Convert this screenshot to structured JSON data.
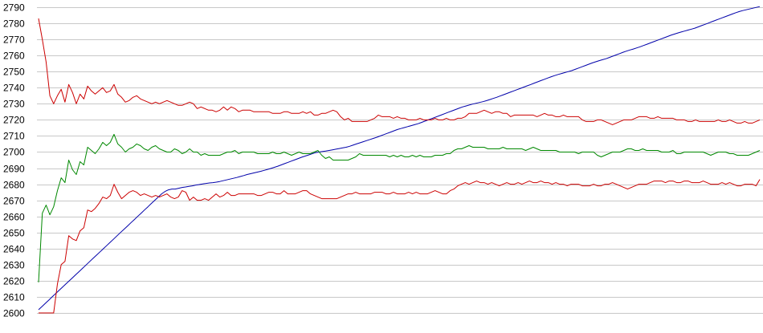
{
  "chart_data": {
    "type": "line",
    "title": "",
    "xlabel": "",
    "ylabel": "",
    "ylim": [
      2600,
      2790
    ],
    "yticks": [
      2600,
      2610,
      2620,
      2630,
      2640,
      2650,
      2660,
      2670,
      2680,
      2690,
      2700,
      2710,
      2720,
      2730,
      2740,
      2750,
      2760,
      2770,
      2780,
      2790
    ],
    "x_tick_labels": "none",
    "grid": "horizontal",
    "legend": "none",
    "series": [
      {
        "color": "#0000aa",
        "values": [
          2602,
          2604,
          2606,
          2608,
          2610,
          2612,
          2614,
          2616,
          2618,
          2620,
          2622,
          2624,
          2626,
          2628,
          2630,
          2632,
          2634,
          2636,
          2638,
          2640,
          2642,
          2644,
          2646,
          2648,
          2650,
          2652,
          2654,
          2656,
          2658,
          2660,
          2662,
          2664,
          2666,
          2668,
          2670,
          2672,
          2674,
          2675.5,
          2676.5,
          2677,
          2677,
          2677.5,
          2678,
          2678.3,
          2678.7,
          2679,
          2679.5,
          2679.8,
          2680.2,
          2680.5,
          2680.8,
          2681,
          2681.3,
          2681.7,
          2682.2,
          2682.7,
          2683.2,
          2683.7,
          2684.2,
          2684.8,
          2685.4,
          2686,
          2686.5,
          2687,
          2687.5,
          2688,
          2688.6,
          2689.2,
          2689.8,
          2690.5,
          2691.2,
          2692,
          2692.8,
          2693.6,
          2694.4,
          2695.2,
          2696,
          2696.8,
          2697.5,
          2698.2,
          2698.9,
          2699.6,
          2700,
          2700.3,
          2700.6,
          2701,
          2701.4,
          2701.8,
          2702.2,
          2702.6,
          2703,
          2703.6,
          2704.3,
          2705,
          2705.7,
          2706.4,
          2707.1,
          2707.8,
          2708.5,
          2709.2,
          2710,
          2710.8,
          2711.6,
          2712.4,
          2713.2,
          2714,
          2714.6,
          2715.2,
          2715.8,
          2716.4,
          2717,
          2717.6,
          2718.4,
          2719.2,
          2720,
          2720.8,
          2721.6,
          2722.4,
          2723.2,
          2724,
          2724.8,
          2725.6,
          2726.4,
          2727.2,
          2728,
          2728.6,
          2729.2,
          2729.8,
          2730.3,
          2730.8,
          2731.3,
          2731.9,
          2732.6,
          2733.3,
          2734,
          2734.8,
          2735.6,
          2736.4,
          2737.2,
          2738,
          2738.8,
          2739.6,
          2740.4,
          2741.2,
          2742,
          2742.8,
          2743.6,
          2744.4,
          2745.2,
          2746,
          2746.8,
          2747.5,
          2748.2,
          2748.8,
          2749.4,
          2750,
          2750.6,
          2751.4,
          2752.2,
          2753,
          2753.8,
          2754.6,
          2755.4,
          2756.1,
          2756.8,
          2757.4,
          2758,
          2758.8,
          2759.6,
          2760.4,
          2761.2,
          2762,
          2762.7,
          2763.4,
          2764,
          2764.7,
          2765.4,
          2766.2,
          2767,
          2767.8,
          2768.6,
          2769.4,
          2770.2,
          2771,
          2771.8,
          2772.6,
          2773.3,
          2774,
          2774.6,
          2775.2,
          2775.8,
          2776.4,
          2777,
          2777.8,
          2778.6,
          2779.4,
          2780.2,
          2781,
          2781.8,
          2782.6,
          2783.4,
          2784.2,
          2785,
          2785.8,
          2786.6,
          2787.3,
          2787.9,
          2788.4,
          2788.9,
          2789.4,
          2789.9,
          2790.4
        ]
      },
      {
        "color": "#cc0000",
        "values": [
          2783,
          2770,
          2756,
          2735,
          2730,
          2735,
          2739,
          2731,
          2742,
          2737,
          2730,
          2736,
          2733,
          2741,
          2738,
          2736,
          2738,
          2740,
          2737,
          2738,
          2742,
          2736,
          2734,
          2731,
          2732,
          2734,
          2735,
          2733,
          2732,
          2731,
          2730,
          2731,
          2730,
          2731,
          2732,
          2731,
          2730,
          2729,
          2729,
          2730,
          2731,
          2730,
          2727,
          2728,
          2727,
          2726,
          2726,
          2725,
          2726,
          2728,
          2726,
          2728,
          2727,
          2725,
          2726,
          2726,
          2726,
          2725,
          2725,
          2725,
          2725,
          2725,
          2724,
          2724,
          2724,
          2725,
          2725,
          2724,
          2724,
          2724,
          2725,
          2724,
          2725,
          2723,
          2723,
          2724,
          2724,
          2725,
          2726,
          2725,
          2722,
          2720,
          2721,
          2719,
          2719,
          2719,
          2719,
          2719,
          2720,
          2721,
          2723,
          2722,
          2722,
          2722,
          2721,
          2722,
          2721,
          2721,
          2720,
          2720,
          2720,
          2721,
          2720,
          2720,
          2720,
          2721,
          2720,
          2720,
          2721,
          2720,
          2720,
          2721,
          2721,
          2722,
          2724,
          2724,
          2724,
          2725,
          2726,
          2725,
          2724,
          2725,
          2725,
          2724,
          2724,
          2722,
          2723,
          2723,
          2723,
          2723,
          2723,
          2723,
          2722,
          2723,
          2724,
          2723,
          2723,
          2722,
          2722,
          2723,
          2722,
          2722,
          2722,
          2722,
          2720,
          2719,
          2719,
          2719,
          2720,
          2720,
          2719,
          2718,
          2717,
          2718,
          2719,
          2720,
          2720,
          2720,
          2721,
          2722,
          2722,
          2722,
          2721,
          2721,
          2722,
          2721,
          2721,
          2721,
          2721,
          2720,
          2720,
          2720,
          2719,
          2719,
          2720,
          2719,
          2719,
          2719,
          2719,
          2719,
          2720,
          2719,
          2719,
          2720,
          2719,
          2718,
          2718,
          2719,
          2718,
          2718,
          2719,
          2720
        ]
      },
      {
        "color": "#008800",
        "values": [
          2619,
          2662,
          2667,
          2661,
          2666,
          2676,
          2684,
          2681,
          2695,
          2689,
          2686,
          2694,
          2692,
          2703,
          2701,
          2699,
          2702,
          2706,
          2704,
          2706,
          2711,
          2705,
          2703,
          2700,
          2702,
          2703,
          2705,
          2704,
          2702,
          2701,
          2703,
          2704,
          2702,
          2701,
          2700,
          2700,
          2702,
          2701,
          2699,
          2700,
          2702,
          2700,
          2700,
          2698,
          2699,
          2698,
          2698,
          2698,
          2698,
          2699,
          2700,
          2700,
          2701,
          2699,
          2700,
          2700,
          2700,
          2700,
          2699,
          2699,
          2699,
          2699,
          2700,
          2699,
          2699,
          2700,
          2699,
          2698,
          2699,
          2700,
          2699,
          2699,
          2699,
          2700,
          2701,
          2698,
          2696,
          2697,
          2695,
          2695,
          2695,
          2695,
          2695,
          2696,
          2697,
          2699,
          2698,
          2698,
          2698,
          2698,
          2698,
          2698,
          2698,
          2697,
          2698,
          2697,
          2698,
          2697,
          2697,
          2698,
          2697,
          2698,
          2697,
          2697,
          2697,
          2698,
          2698,
          2698,
          2699,
          2699,
          2701,
          2702,
          2702,
          2703,
          2704,
          2703,
          2703,
          2703,
          2703,
          2702,
          2702,
          2702,
          2702,
          2703,
          2702,
          2702,
          2702,
          2702,
          2702,
          2701,
          2702,
          2703,
          2702,
          2701,
          2701,
          2701,
          2701,
          2701,
          2700,
          2700,
          2700,
          2700,
          2700,
          2699,
          2700,
          2700,
          2700,
          2700,
          2698,
          2697,
          2698,
          2699,
          2700,
          2700,
          2700,
          2701,
          2702,
          2702,
          2701,
          2701,
          2702,
          2701,
          2701,
          2701,
          2701,
          2700,
          2700,
          2700,
          2701,
          2699,
          2699,
          2700,
          2700,
          2700,
          2700,
          2700,
          2700,
          2699,
          2698,
          2699,
          2700,
          2700,
          2700,
          2699,
          2699,
          2698,
          2698,
          2698,
          2698,
          2699,
          2700,
          2701
        ]
      },
      {
        "color": "#cc0000",
        "values": [
          2600,
          2600,
          2600,
          2600,
          2600,
          2618,
          2630,
          2632,
          2648,
          2646,
          2645,
          2651,
          2653,
          2664,
          2663,
          2665,
          2668,
          2672,
          2671,
          2673,
          2680,
          2675,
          2671,
          2673,
          2675,
          2676,
          2675,
          2673,
          2674,
          2673,
          2672,
          2673,
          2672,
          2673,
          2674,
          2672,
          2671,
          2672,
          2676,
          2675,
          2670,
          2672,
          2670,
          2670,
          2671,
          2670,
          2672,
          2674,
          2672,
          2673,
          2675,
          2673,
          2673,
          2674,
          2674,
          2674,
          2674,
          2674,
          2673,
          2673,
          2674,
          2675,
          2675,
          2674,
          2674,
          2676,
          2674,
          2674,
          2674,
          2675,
          2676,
          2676,
          2674,
          2673,
          2672,
          2671,
          2671,
          2671,
          2671,
          2671,
          2672,
          2673,
          2674,
          2674,
          2675,
          2674,
          2674,
          2674,
          2674,
          2675,
          2675,
          2675,
          2674,
          2674,
          2675,
          2674,
          2674,
          2674,
          2675,
          2674,
          2675,
          2674,
          2674,
          2674,
          2675,
          2676,
          2675,
          2674,
          2674,
          2676,
          2677,
          2679,
          2680,
          2681,
          2680,
          2681,
          2682,
          2681,
          2681,
          2680,
          2681,
          2680,
          2679,
          2680,
          2681,
          2680,
          2680,
          2681,
          2680,
          2681,
          2682,
          2681,
          2681,
          2682,
          2681,
          2681,
          2680,
          2681,
          2680,
          2680,
          2679,
          2680,
          2680,
          2680,
          2679,
          2679,
          2679,
          2680,
          2679,
          2679,
          2680,
          2680,
          2681,
          2680,
          2679,
          2678,
          2677,
          2678,
          2679,
          2680,
          2680,
          2680,
          2681,
          2682,
          2682,
          2682,
          2681,
          2682,
          2682,
          2681,
          2681,
          2682,
          2682,
          2681,
          2681,
          2681,
          2682,
          2681,
          2680,
          2680,
          2680,
          2681,
          2680,
          2681,
          2680,
          2679,
          2679,
          2680,
          2680,
          2680,
          2679,
          2683
        ]
      }
    ]
  }
}
